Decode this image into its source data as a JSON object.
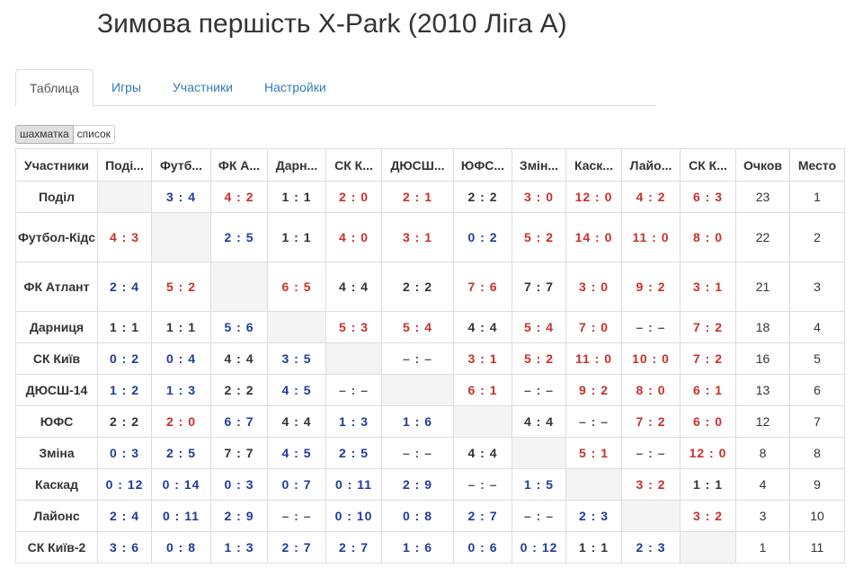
{
  "page": {
    "title": "Зимова першість X-Park (2010 Ліга А)"
  },
  "tabs": [
    {
      "label": "Таблица",
      "active": true
    },
    {
      "label": "Игры",
      "active": false
    },
    {
      "label": "Участники",
      "active": false
    },
    {
      "label": "Настройки",
      "active": false
    }
  ],
  "view_toggle": {
    "grid_label": "шахматка",
    "list_label": "список",
    "selected": "шахматка"
  },
  "colors": {
    "win": "#c9302c",
    "loss": "#1d3c9c",
    "draw": "#333333",
    "link": "#337ab7",
    "self_cell": "#f4f4f4"
  },
  "table": {
    "headers": {
      "participants": "Участники",
      "teams": [
        "Поді...",
        "Футб...",
        "ФК А...",
        "Дарн...",
        "СК К...",
        "ДЮСШ...",
        "ЮФС...",
        "Змін...",
        "Каск...",
        "Лайо...",
        "СК К..."
      ],
      "points": "Очков",
      "place": "Место"
    },
    "rows": [
      {
        "team": "Поділ",
        "points": "23",
        "place": "1",
        "results": [
          "",
          "3 : 4",
          "4 : 2",
          "1 : 1",
          "2 : 0",
          "2 : 1",
          "2 : 2",
          "3 : 0",
          "12 : 0",
          "4 : 2",
          "6 : 3"
        ]
      },
      {
        "team": "Футбол-Кідс",
        "points": "22",
        "place": "2",
        "results": [
          "4 : 3",
          "",
          "2 : 5",
          "1 : 1",
          "4 : 0",
          "3 : 1",
          "0 : 2",
          "5 : 2",
          "14 : 0",
          "11 : 0",
          "8 : 0"
        ]
      },
      {
        "team": "ФК Атлант",
        "points": "21",
        "place": "3",
        "results": [
          "2 : 4",
          "5 : 2",
          "",
          "6 : 5",
          "4 : 4",
          "2 : 2",
          "7 : 6",
          "7 : 7",
          "3 : 0",
          "9 : 2",
          "3 : 1"
        ]
      },
      {
        "team": "Дарниця",
        "points": "18",
        "place": "4",
        "results": [
          "1 : 1",
          "1 : 1",
          "5 : 6",
          "",
          "5 : 3",
          "5 : 4",
          "4 : 4",
          "5 : 4",
          "7 : 0",
          "– : –",
          "7 : 2"
        ]
      },
      {
        "team": "СК Київ",
        "points": "16",
        "place": "5",
        "results": [
          "0 : 2",
          "0 : 4",
          "4 : 4",
          "3 : 5",
          "",
          "– : –",
          "3 : 1",
          "5 : 2",
          "11 : 0",
          "10 : 0",
          "7 : 2"
        ]
      },
      {
        "team": "ДЮСШ-14",
        "points": "13",
        "place": "6",
        "results": [
          "1 : 2",
          "1 : 3",
          "2 : 2",
          "4 : 5",
          "– : –",
          "",
          "6 : 1",
          "– : –",
          "9 : 2",
          "8 : 0",
          "6 : 1"
        ]
      },
      {
        "team": "ЮФС",
        "points": "12",
        "place": "7",
        "results": [
          "2 : 2",
          "2 : 0",
          "6 : 7",
          "4 : 4",
          "1 : 3",
          "1 : 6",
          "",
          "4 : 4",
          "– : –",
          "7 : 2",
          "6 : 0"
        ]
      },
      {
        "team": "Зміна",
        "points": "8",
        "place": "8",
        "results": [
          "0 : 3",
          "2 : 5",
          "7 : 7",
          "4 : 5",
          "2 : 5",
          "– : –",
          "4 : 4",
          "",
          "5 : 1",
          "– : –",
          "12 : 0"
        ]
      },
      {
        "team": "Каскад",
        "points": "4",
        "place": "9",
        "results": [
          "0 : 12",
          "0 : 14",
          "0 : 3",
          "0 : 7",
          "0 : 11",
          "2 : 9",
          "– : –",
          "1 : 5",
          "",
          "3 : 2",
          "1 : 1"
        ]
      },
      {
        "team": "Лайонс",
        "points": "3",
        "place": "10",
        "results": [
          "2 : 4",
          "0 : 11",
          "2 : 9",
          "– : –",
          "0 : 10",
          "0 : 8",
          "2 : 7",
          "– : –",
          "2 : 3",
          "",
          "3 : 2"
        ]
      },
      {
        "team": "СК Київ-2",
        "points": "1",
        "place": "11",
        "results": [
          "3 : 6",
          "0 : 8",
          "1 : 3",
          "2 : 7",
          "2 : 7",
          "1 : 6",
          "0 : 6",
          "0 : 12",
          "1 : 1",
          "2 : 3",
          ""
        ]
      }
    ]
  }
}
